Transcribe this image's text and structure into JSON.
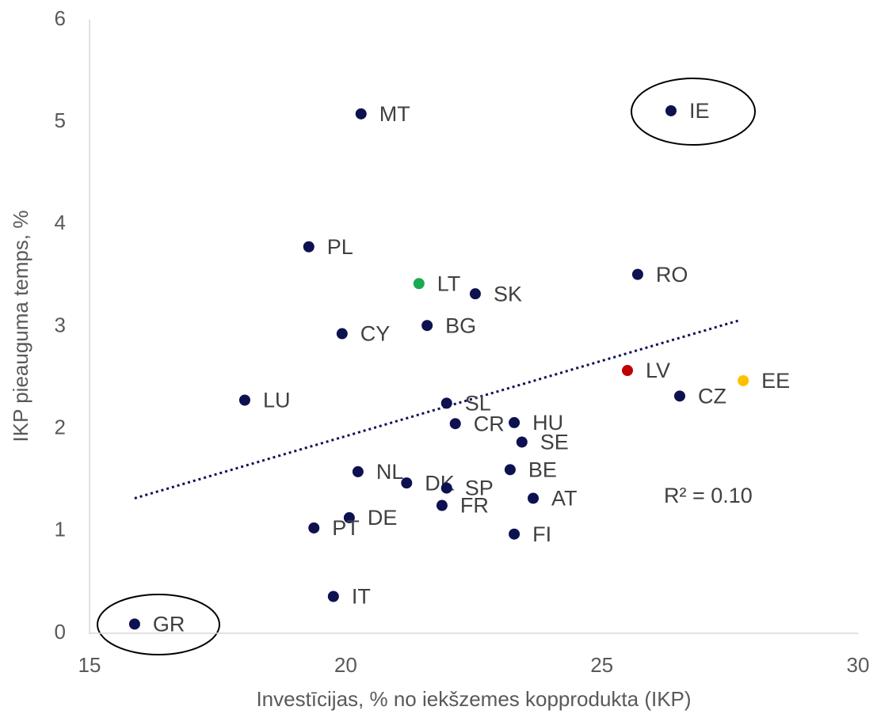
{
  "chart_data": {
    "type": "scatter",
    "xlabel": "Investīcijas, % no iekšzemes kopprodukta (IKP)",
    "ylabel": "IKP pieauguma temps, %",
    "labels": [
      "MT",
      "IE",
      "PL",
      "LT",
      "SK",
      "RO",
      "CY",
      "BG",
      "LV",
      "EE",
      "CZ",
      "LU",
      "SL",
      "CR",
      "HU",
      "SE",
      "BE",
      "NL",
      "DK",
      "SP",
      "AT",
      "FR",
      "DE",
      "PT",
      "FI",
      "IT",
      "GR"
    ],
    "x": [
      20.3,
      26.35,
      19.28,
      21.43,
      22.53,
      25.7,
      19.93,
      21.59,
      25.5,
      27.76,
      26.52,
      18.03,
      21.97,
      22.14,
      23.29,
      23.44,
      23.21,
      20.24,
      21.19,
      21.97,
      23.66,
      21.88,
      20.07,
      19.38,
      23.29,
      19.76,
      15.88
    ],
    "y": [
      5.08,
      5.11,
      3.78,
      3.42,
      3.32,
      3.51,
      2.93,
      3.01,
      2.57,
      2.47,
      2.32,
      2.28,
      2.25,
      2.05,
      2.06,
      1.87,
      1.6,
      1.58,
      1.47,
      1.42,
      1.32,
      1.25,
      1.13,
      1.03,
      0.97,
      0.36,
      0.09
    ],
    "colors": [
      "#0d1150",
      "#0d1150",
      "#0d1150",
      "#1aaa50",
      "#0d1150",
      "#0d1150",
      "#0d1150",
      "#0d1150",
      "#c00000",
      "#ffc000",
      "#0d1150",
      "#0d1150",
      "#0d1150",
      "#0d1150",
      "#0d1150",
      "#0d1150",
      "#0d1150",
      "#0d1150",
      "#0d1150",
      "#0d1150",
      "#0d1150",
      "#0d1150",
      "#0d1150",
      "#0d1150",
      "#0d1150",
      "#0d1150",
      "#0d1150"
    ],
    "trendline": {
      "x": [
        15.88,
        27.68
      ],
      "y": [
        1.32,
        3.06
      ],
      "color": "#0d1150"
    },
    "annotation": "R² = 0.10",
    "xlim": [
      15,
      30
    ],
    "xticks": [
      15,
      20,
      25,
      30
    ],
    "ylim": [
      0,
      6
    ],
    "yticks": [
      0,
      1,
      2,
      3,
      4,
      5,
      6
    ],
    "grid": false
  }
}
